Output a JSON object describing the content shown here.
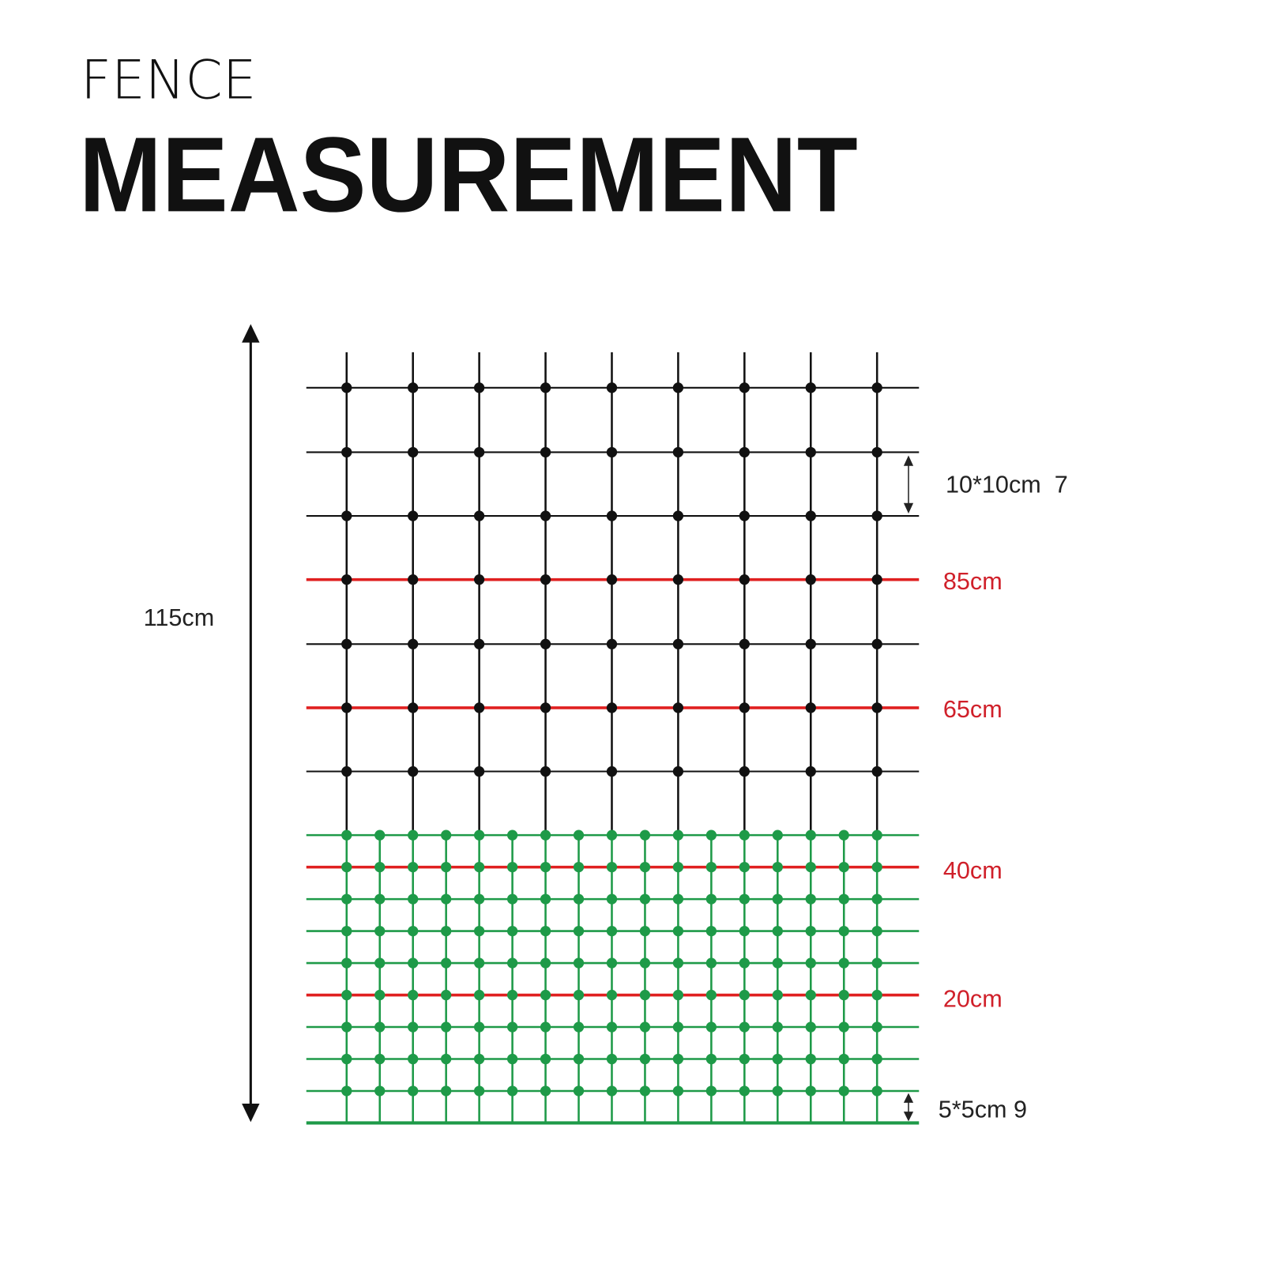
{
  "title": {
    "line1": "FENCE",
    "line2": "MEASUREMENT"
  },
  "labels": {
    "total_height": "115cm",
    "top_mesh": "10*10cm  7",
    "bottom_mesh": "5*5cm 9",
    "wire_85": "85cm",
    "wire_65": "65cm",
    "wire_40": "40cm",
    "wire_20": "20cm"
  },
  "colors": {
    "top_mesh": "#111111",
    "bottom_mesh": "#1e9a48",
    "electric_wire": "#e02020",
    "wire_label": "#d0202a",
    "text": "#111111"
  }
}
